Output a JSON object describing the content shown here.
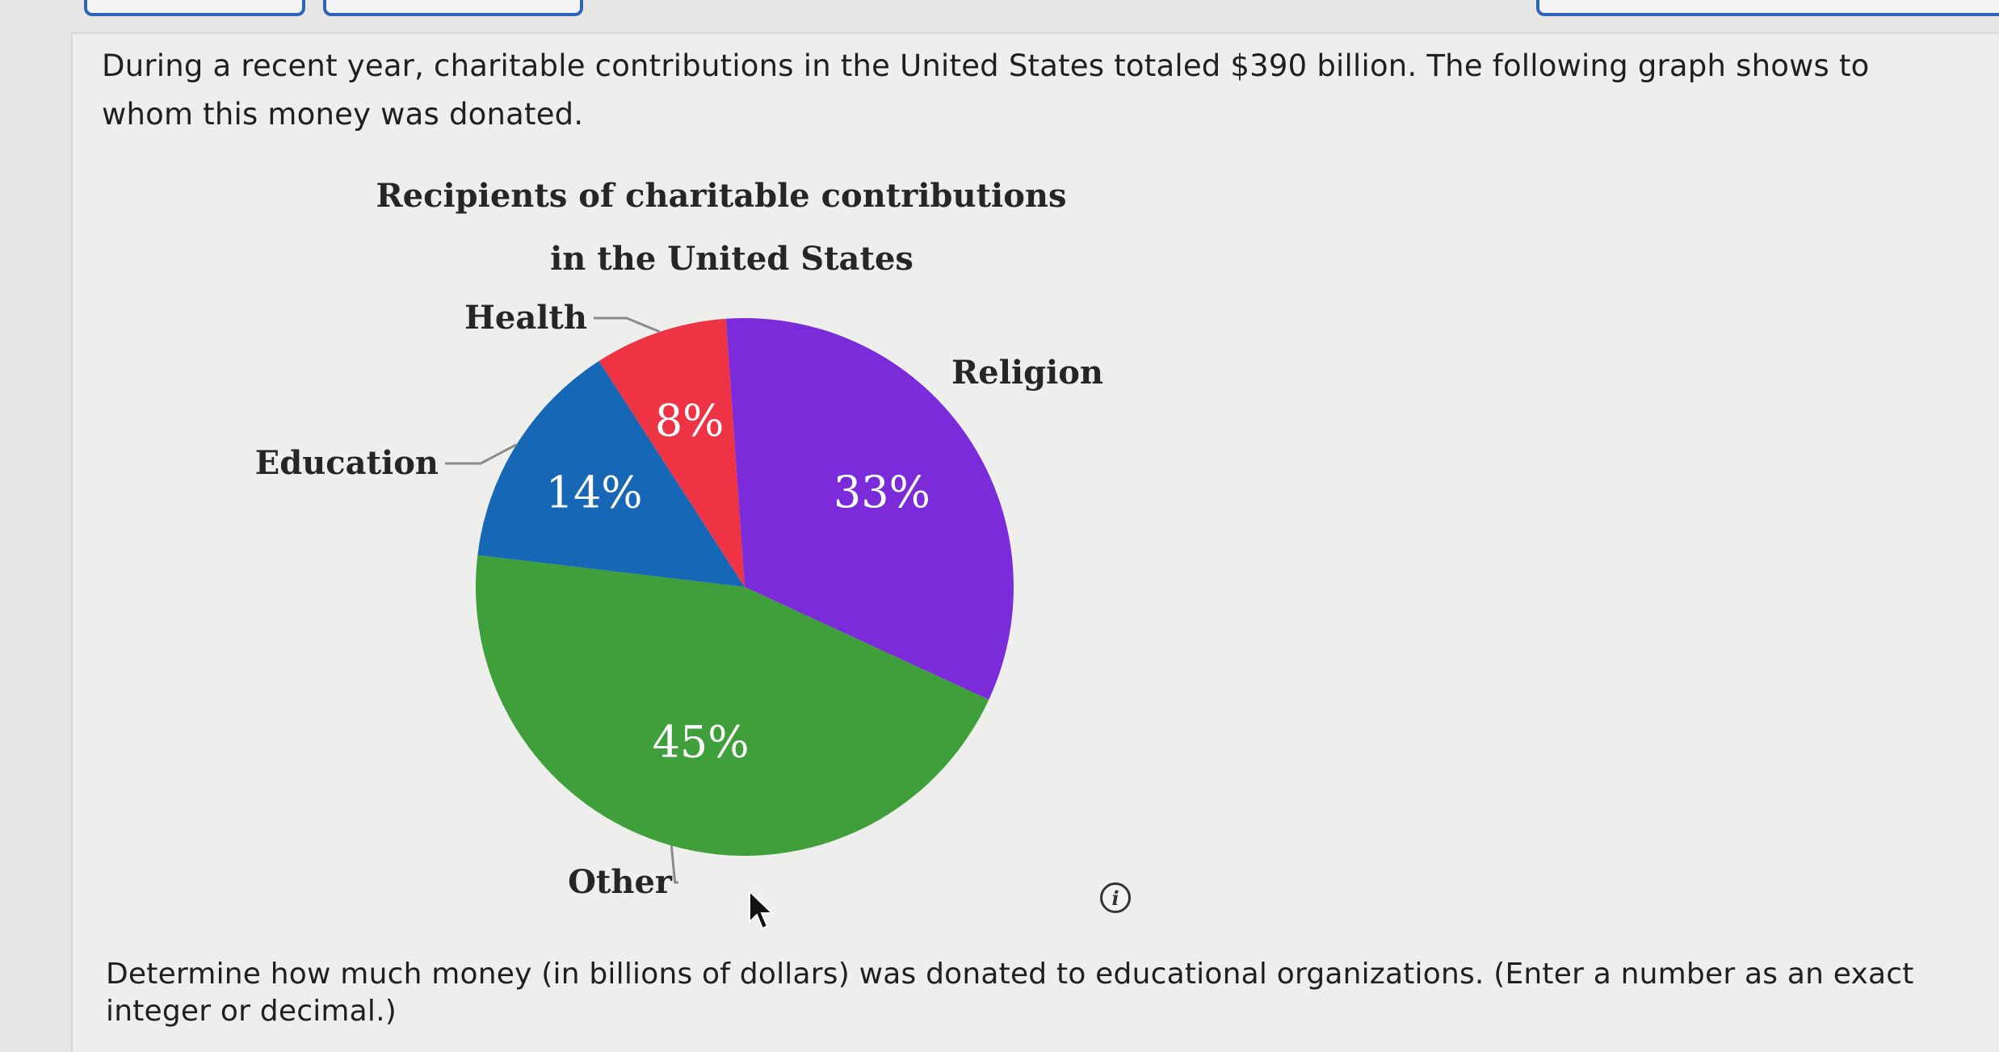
{
  "question": {
    "intro": "During a recent year, charitable contributions in the United States totaled $390 billion. The following graph shows to whom this money was donated.",
    "prompt": "Determine how much money (in billions of dollars) was donated to educational organizations. (Enter a number as an exact integer or decimal.)"
  },
  "info_icon": "i",
  "chart_data": {
    "type": "pie",
    "title_lines": [
      "Recipients of charitable contributions",
      "in the United States"
    ],
    "slices": [
      {
        "name": "Religion",
        "value": 33,
        "label": "33%",
        "color": "#7b2bd9"
      },
      {
        "name": "Other",
        "value": 45,
        "label": "45%",
        "color": "#3f9f3a"
      },
      {
        "name": "Education",
        "value": 14,
        "label": "14%",
        "color": "#1767b7"
      },
      {
        "name": "Health",
        "value": 8,
        "label": "8%",
        "color": "#ee3344"
      }
    ],
    "value_unit": "percent"
  }
}
